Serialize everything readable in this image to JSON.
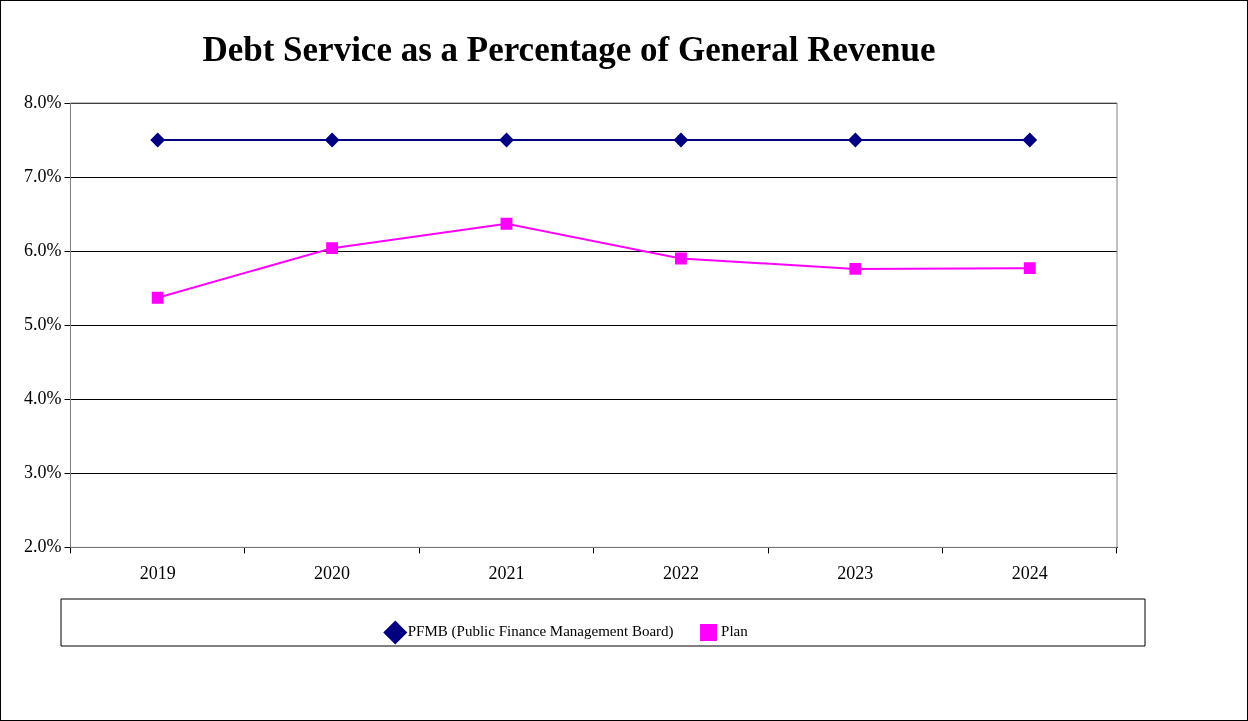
{
  "chart_data": {
    "type": "line",
    "title": "Debt Service as a Percentage of General Revenue",
    "categories": [
      "2019",
      "2020",
      "2021",
      "2022",
      "2023",
      "2024"
    ],
    "series": [
      {
        "name": "PFMB (Public Finance Management Board)",
        "color": "#000080",
        "marker": "diamond",
        "values": [
          7.5,
          7.5,
          7.5,
          7.5,
          7.5,
          7.5
        ]
      },
      {
        "name": "Plan",
        "color": "#ff00ff",
        "marker": "square",
        "values": [
          5.37,
          6.04,
          6.37,
          5.9,
          5.76,
          5.77
        ]
      }
    ],
    "ylim": [
      2,
      8
    ],
    "yticks": [
      {
        "value": 2,
        "label": "2.0%"
      },
      {
        "value": 3,
        "label": "3.0%"
      },
      {
        "value": 4,
        "label": "4.0%"
      },
      {
        "value": 5,
        "label": "5.0%"
      },
      {
        "value": 6,
        "label": "6.0%"
      },
      {
        "value": 7,
        "label": "7.0%"
      },
      {
        "value": 8,
        "label": "8.0%"
      }
    ],
    "grid": "y",
    "legend": "bottom",
    "line_style": "solid"
  }
}
